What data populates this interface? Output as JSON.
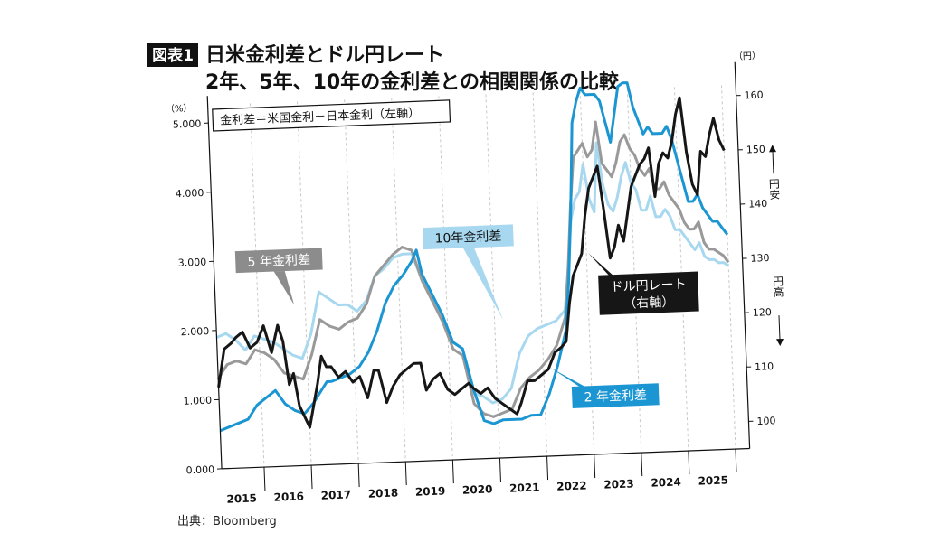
{
  "figure": {
    "badge": "図表1",
    "title_line1": "日米金利差とドル円レート",
    "title_line2": "2年、5年、10年の金利差との相関関係の比較",
    "note": "金利差＝米国金利－日本金利（左軸）",
    "source": "出典：Bloomberg"
  },
  "colors": {
    "y2": "#1b96d2",
    "y5": "#999999",
    "y10": "#a8d8ef",
    "fx": "#161616"
  },
  "chart_data": {
    "type": "line",
    "x_range": [
      2014.6,
      2025.8
    ],
    "categories": [
      "2015",
      "2016",
      "2017",
      "2018",
      "2019",
      "2020",
      "2021",
      "2022",
      "2023",
      "2024",
      "2025"
    ],
    "left_axis": {
      "unit": "（%）",
      "ticks": [
        "0.000",
        "1.000",
        "2.000",
        "3.000",
        "4.000",
        "5.000"
      ],
      "ylim": [
        0,
        5
      ]
    },
    "right_axis": {
      "unit": "（円）",
      "ticks": [
        "100",
        "110",
        "120",
        "130",
        "140",
        "150",
        "160"
      ],
      "ylim": [
        95,
        162
      ],
      "side_top": "円安",
      "side_bottom": "円高"
    },
    "series": [
      {
        "name": "2年金利差",
        "key": "y2",
        "axis": "left",
        "x": [
          2014.6,
          2014.8,
          2015.0,
          2015.2,
          2015.4,
          2015.6,
          2015.8,
          2016.0,
          2016.2,
          2016.4,
          2016.6,
          2016.8,
          2016.9,
          2017.0,
          2017.2,
          2017.4,
          2017.6,
          2017.8,
          2018.0,
          2018.2,
          2018.4,
          2018.6,
          2018.8,
          2018.9,
          2019.0,
          2019.2,
          2019.4,
          2019.6,
          2019.8,
          2020.0,
          2020.2,
          2020.4,
          2020.6,
          2020.8,
          2021.0,
          2021.2,
          2021.4,
          2021.6,
          2021.8,
          2022.0,
          2022.1,
          2022.2,
          2022.3,
          2022.4,
          2022.5,
          2022.6,
          2022.7,
          2022.8,
          2022.9,
          2023.0,
          2023.1,
          2023.2,
          2023.3,
          2023.4,
          2023.5,
          2023.6,
          2023.7,
          2023.8,
          2023.9,
          2024.0,
          2024.1,
          2024.2,
          2024.3,
          2024.4,
          2024.5,
          2024.6,
          2024.7,
          2024.8,
          2024.9,
          2025.0,
          2025.1,
          2025.2,
          2025.3,
          2025.4,
          2025.5
        ],
        "values": [
          0.55,
          0.6,
          0.65,
          0.7,
          0.9,
          1.0,
          1.1,
          0.9,
          0.8,
          0.75,
          0.9,
          1.1,
          1.2,
          1.2,
          1.25,
          1.3,
          1.4,
          1.6,
          1.9,
          2.3,
          2.55,
          2.7,
          2.9,
          3.05,
          2.7,
          2.4,
          2.1,
          1.7,
          1.6,
          1.0,
          0.55,
          0.5,
          0.55,
          0.55,
          0.55,
          0.6,
          0.6,
          0.9,
          1.3,
          1.8,
          2.5,
          3.5,
          4.8,
          5.1,
          5.3,
          5.2,
          5.2,
          5.2,
          5.1,
          4.8,
          4.5,
          4.9,
          5.3,
          5.35,
          5.35,
          5.0,
          4.8,
          4.6,
          4.7,
          4.6,
          4.6,
          4.6,
          4.7,
          4.5,
          4.2,
          3.9,
          3.6,
          3.6,
          3.7,
          3.5,
          3.4,
          3.3,
          3.3,
          3.2,
          3.1
        ]
      },
      {
        "name": "5年金利差",
        "key": "y5",
        "axis": "left",
        "x": [
          2014.6,
          2014.8,
          2015.0,
          2015.2,
          2015.4,
          2015.6,
          2015.8,
          2016.0,
          2016.2,
          2016.4,
          2016.6,
          2016.8,
          2017.0,
          2017.2,
          2017.4,
          2017.6,
          2017.8,
          2018.0,
          2018.2,
          2018.4,
          2018.6,
          2018.8,
          2019.0,
          2019.2,
          2019.4,
          2019.6,
          2019.8,
          2020.0,
          2020.2,
          2020.4,
          2020.6,
          2020.8,
          2021.0,
          2021.2,
          2021.4,
          2021.6,
          2021.8,
          2022.0,
          2022.1,
          2022.2,
          2022.3,
          2022.4,
          2022.5,
          2022.6,
          2022.7,
          2022.8,
          2022.9,
          2023.0,
          2023.1,
          2023.2,
          2023.3,
          2023.4,
          2023.5,
          2023.6,
          2023.7,
          2023.8,
          2023.9,
          2024.0,
          2024.1,
          2024.2,
          2024.3,
          2024.4,
          2024.5,
          2024.6,
          2024.7,
          2024.8,
          2024.9,
          2025.0,
          2025.1,
          2025.2,
          2025.3,
          2025.4,
          2025.5
        ],
        "values": [
          1.3,
          1.5,
          1.55,
          1.5,
          1.7,
          1.65,
          1.55,
          1.35,
          1.3,
          1.25,
          1.6,
          2.1,
          2.0,
          1.95,
          2.05,
          2.1,
          2.3,
          2.7,
          2.85,
          3.0,
          3.1,
          3.05,
          2.6,
          2.3,
          2.0,
          1.6,
          1.5,
          0.8,
          0.65,
          0.6,
          0.65,
          0.7,
          1.0,
          1.15,
          1.25,
          1.4,
          1.6,
          2.0,
          2.7,
          3.6,
          4.3,
          4.4,
          4.5,
          4.3,
          4.4,
          4.8,
          4.2,
          4.1,
          4.0,
          4.2,
          4.5,
          4.6,
          4.4,
          4.3,
          4.1,
          4.0,
          4.1,
          3.8,
          3.8,
          3.9,
          3.7,
          3.6,
          3.5,
          3.3,
          3.2,
          3.2,
          3.3,
          3.0,
          2.9,
          2.9,
          2.85,
          2.8,
          2.7
        ]
      },
      {
        "name": "10年金利差",
        "key": "y10",
        "axis": "left",
        "x": [
          2014.6,
          2014.8,
          2015.0,
          2015.2,
          2015.4,
          2015.6,
          2015.8,
          2016.0,
          2016.2,
          2016.4,
          2016.6,
          2016.8,
          2017.0,
          2017.2,
          2017.4,
          2017.6,
          2017.8,
          2018.0,
          2018.2,
          2018.4,
          2018.6,
          2018.8,
          2019.0,
          2019.2,
          2019.4,
          2019.6,
          2019.8,
          2020.0,
          2020.2,
          2020.4,
          2020.6,
          2020.8,
          2021.0,
          2021.2,
          2021.4,
          2021.6,
          2021.8,
          2022.0,
          2022.1,
          2022.2,
          2022.3,
          2022.4,
          2022.5,
          2022.6,
          2022.7,
          2022.8,
          2022.9,
          2023.0,
          2023.1,
          2023.2,
          2023.3,
          2023.4,
          2023.5,
          2023.6,
          2023.7,
          2023.8,
          2023.9,
          2024.0,
          2024.1,
          2024.2,
          2024.3,
          2024.4,
          2024.5,
          2024.6,
          2024.7,
          2024.8,
          2024.9,
          2025.0,
          2025.1,
          2025.2,
          2025.3,
          2025.4,
          2025.5
        ],
        "values": [
          1.9,
          1.95,
          1.85,
          1.7,
          1.9,
          1.85,
          1.8,
          1.7,
          1.6,
          1.55,
          1.9,
          2.5,
          2.4,
          2.3,
          2.3,
          2.2,
          2.35,
          2.7,
          2.8,
          2.95,
          3.0,
          3.0,
          2.6,
          2.35,
          2.05,
          1.7,
          1.6,
          0.95,
          0.9,
          0.8,
          0.85,
          1.0,
          1.5,
          1.75,
          1.85,
          1.9,
          1.95,
          2.1,
          2.7,
          3.4,
          3.7,
          3.8,
          4.2,
          3.7,
          3.5,
          4.5,
          3.9,
          3.6,
          3.5,
          3.7,
          4.0,
          4.2,
          3.9,
          3.8,
          3.5,
          3.5,
          3.7,
          3.4,
          3.4,
          3.5,
          3.4,
          3.2,
          3.2,
          3.1,
          3.0,
          2.9,
          3.0,
          2.8,
          2.75,
          2.75,
          2.7,
          2.7,
          2.65
        ]
      },
      {
        "name": "ドル円レート",
        "key": "fx",
        "axis": "right",
        "x": [
          2014.6,
          2014.75,
          2014.9,
          2015.0,
          2015.15,
          2015.3,
          2015.45,
          2015.6,
          2015.75,
          2015.9,
          2016.0,
          2016.1,
          2016.2,
          2016.3,
          2016.4,
          2016.5,
          2016.6,
          2016.7,
          2016.8,
          2016.9,
          2017.0,
          2017.15,
          2017.3,
          2017.45,
          2017.6,
          2017.75,
          2017.9,
          2018.0,
          2018.15,
          2018.3,
          2018.45,
          2018.6,
          2018.75,
          2018.9,
          2019.0,
          2019.15,
          2019.3,
          2019.45,
          2019.6,
          2019.75,
          2019.9,
          2020.0,
          2020.15,
          2020.3,
          2020.45,
          2020.6,
          2020.75,
          2020.9,
          2021.0,
          2021.15,
          2021.3,
          2021.45,
          2021.6,
          2021.75,
          2021.9,
          2022.0,
          2022.1,
          2022.2,
          2022.3,
          2022.4,
          2022.5,
          2022.6,
          2022.7,
          2022.8,
          2022.9,
          2023.0,
          2023.1,
          2023.2,
          2023.3,
          2023.4,
          2023.5,
          2023.6,
          2023.7,
          2023.8,
          2023.9,
          2024.0,
          2024.1,
          2024.2,
          2024.3,
          2024.4,
          2024.5,
          2024.6,
          2024.7,
          2024.8,
          2024.9,
          2025.0,
          2025.1,
          2025.2,
          2025.3,
          2025.4,
          2025.5
        ],
        "values": [
          110,
          117,
          118,
          119,
          120,
          117,
          118,
          121,
          116,
          121,
          118,
          110,
          112,
          106,
          104,
          102,
          106,
          110,
          115,
          113,
          113,
          111,
          112,
          110,
          111,
          107,
          112,
          112,
          106,
          109,
          111,
          112,
          113,
          113,
          108,
          110,
          111,
          108,
          107,
          108,
          109,
          108,
          107,
          108,
          106,
          105,
          104,
          103,
          105,
          109,
          109,
          110,
          111,
          114,
          115,
          116,
          123,
          128,
          130,
          132,
          139,
          144,
          146,
          148,
          140,
          131,
          133,
          137,
          134,
          139,
          144,
          146,
          148,
          149,
          151,
          142,
          148,
          150,
          149,
          152,
          157,
          160,
          150,
          144,
          142,
          150,
          149,
          153,
          156,
          152,
          150
        ]
      }
    ],
    "annotations": [
      {
        "text": "5 年金利差",
        "series": "y5"
      },
      {
        "text": "10年金利差",
        "series": "y10"
      },
      {
        "text": "ドル円レート",
        "text2": "（右軸）",
        "series": "fx"
      },
      {
        "text": "2 年金利差",
        "series": "y2"
      }
    ]
  }
}
